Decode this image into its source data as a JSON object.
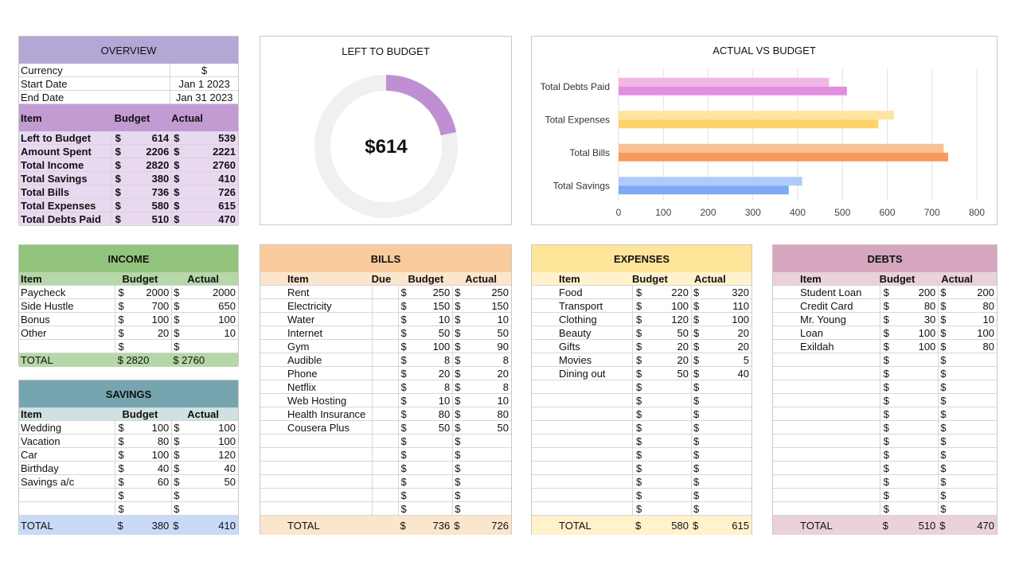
{
  "overview": {
    "title": "OVERVIEW",
    "meta": [
      {
        "label": "Currency",
        "value": "$"
      },
      {
        "label": "Start Date",
        "value": "Jan 1 2023"
      },
      {
        "label": "End Date",
        "value": "Jan 31 2023"
      }
    ],
    "headers": {
      "item": "Item",
      "budget": "Budget",
      "actual": "Actual"
    },
    "rows": [
      {
        "item": "Left to Budget",
        "cur": "$",
        "budget": "614",
        "cur2": "$",
        "actual": "539"
      },
      {
        "item": "Amount Spent",
        "cur": "$",
        "budget": "2206",
        "cur2": "$",
        "actual": "2221"
      },
      {
        "item": "Total Income",
        "cur": "$",
        "budget": "2820",
        "cur2": "$",
        "actual": "2760"
      },
      {
        "item": "Total Savings",
        "cur": "$",
        "budget": "380",
        "cur2": "$",
        "actual": "410"
      },
      {
        "item": "Total Bills",
        "cur": "$",
        "budget": "736",
        "cur2": "$",
        "actual": "726"
      },
      {
        "item": "Total Expenses",
        "cur": "$",
        "budget": "580",
        "cur2": "$",
        "actual": "615"
      },
      {
        "item": "Total Debts Paid",
        "cur": "$",
        "budget": "510",
        "cur2": "$",
        "actual": "470"
      }
    ],
    "colors": {
      "header": "#b4a7d6",
      "subheader": "#c39bd3",
      "body": "#e8d9f1"
    }
  },
  "left_to_budget": {
    "title": "LEFT TO BUDGET",
    "value_label": "$614",
    "fraction": 0.218,
    "colors": {
      "filled": "#c08fd3",
      "track": "#f0f0f0"
    }
  },
  "chart_data": {
    "type": "bar",
    "orientation": "horizontal",
    "title": "ACTUAL VS BUDGET",
    "categories": [
      "Total Debts Paid",
      "Total Expenses",
      "Total Bills",
      "Total Savings"
    ],
    "series": [
      {
        "values": [
          470,
          615,
          726,
          410
        ]
      },
      {
        "values": [
          510,
          580,
          736,
          380
        ]
      }
    ],
    "xlim": [
      0,
      800
    ],
    "xticks": [
      "0",
      "100",
      "200",
      "300",
      "400",
      "500",
      "600",
      "700",
      "800"
    ],
    "grid": true,
    "legend": "none",
    "colors": {
      "Total Debts Paid": [
        "#f2b5e6",
        "#e28fe0"
      ],
      "Total Expenses": [
        "#fde4a0",
        "#fdd36a"
      ],
      "Total Bills": [
        "#fbbf95",
        "#f79a5b"
      ],
      "Total Savings": [
        "#aecbfb",
        "#7ea9f3"
      ]
    }
  },
  "income": {
    "title": "INCOME",
    "headers": {
      "item": "Item",
      "budget": "Budget",
      "actual": "Actual"
    },
    "rows": [
      {
        "item": "Paycheck",
        "cur": "$",
        "budget": "2000",
        "cur2": "$",
        "actual": "2000"
      },
      {
        "item": "Side Hustle",
        "cur": "$",
        "budget": "700",
        "cur2": "$",
        "actual": "650"
      },
      {
        "item": "Bonus",
        "cur": "$",
        "budget": "100",
        "cur2": "$",
        "actual": "100"
      },
      {
        "item": "Other",
        "cur": "$",
        "budget": "20",
        "cur2": "$",
        "actual": "10"
      },
      {
        "item": "",
        "cur": "$",
        "budget": "",
        "cur2": "$",
        "actual": ""
      }
    ],
    "total": {
      "label": "TOTAL",
      "budget": "$  2820",
      "actual": "$  2760"
    },
    "colors": {
      "header": "#93c47d",
      "subheader": "#b6d7a8"
    }
  },
  "savings": {
    "title": "SAVINGS",
    "headers": {
      "item": "Item",
      "budget": "Budget",
      "actual": "Actual"
    },
    "rows": [
      {
        "item": "Wedding",
        "cur": "$",
        "budget": "100",
        "cur2": "$",
        "actual": "100"
      },
      {
        "item": "Vacation",
        "cur": "$",
        "budget": "80",
        "cur2": "$",
        "actual": "100"
      },
      {
        "item": "Car",
        "cur": "$",
        "budget": "100",
        "cur2": "$",
        "actual": "120"
      },
      {
        "item": "Birthday",
        "cur": "$",
        "budget": "40",
        "cur2": "$",
        "actual": "40"
      },
      {
        "item": "Savings a/c",
        "cur": "$",
        "budget": "60",
        "cur2": "$",
        "actual": "50"
      },
      {
        "item": "",
        "cur": "$",
        "budget": "",
        "cur2": "$",
        "actual": ""
      },
      {
        "item": "",
        "cur": "$",
        "budget": "",
        "cur2": "$",
        "actual": ""
      }
    ],
    "total": {
      "label": "TOTAL",
      "cur": "$",
      "budget": "380",
      "cur2": "$",
      "actual": "410"
    },
    "colors": {
      "header": "#76a5af",
      "subheader": "#d0e0e3",
      "total": "#c9daf8"
    }
  },
  "bills": {
    "title": "BILLS",
    "headers": {
      "item": "Item",
      "due": "Due",
      "budget": "Budget",
      "actual": "Actual"
    },
    "rows": [
      {
        "item": "Rent",
        "due": "",
        "cur": "$",
        "budget": "250",
        "cur2": "$",
        "actual": "250"
      },
      {
        "item": "Electricity",
        "due": "",
        "cur": "$",
        "budget": "150",
        "cur2": "$",
        "actual": "150"
      },
      {
        "item": "Water",
        "due": "",
        "cur": "$",
        "budget": "10",
        "cur2": "$",
        "actual": "10"
      },
      {
        "item": "Internet",
        "due": "",
        "cur": "$",
        "budget": "50",
        "cur2": "$",
        "actual": "50"
      },
      {
        "item": "Gym",
        "due": "",
        "cur": "$",
        "budget": "100",
        "cur2": "$",
        "actual": "90"
      },
      {
        "item": "Audible",
        "due": "",
        "cur": "$",
        "budget": "8",
        "cur2": "$",
        "actual": "8"
      },
      {
        "item": "Phone",
        "due": "",
        "cur": "$",
        "budget": "20",
        "cur2": "$",
        "actual": "20"
      },
      {
        "item": "Netflix",
        "due": "",
        "cur": "$",
        "budget": "8",
        "cur2": "$",
        "actual": "8"
      },
      {
        "item": "Web Hosting",
        "due": "",
        "cur": "$",
        "budget": "10",
        "cur2": "$",
        "actual": "10"
      },
      {
        "item": "Health Insurance",
        "due": "",
        "cur": "$",
        "budget": "80",
        "cur2": "$",
        "actual": "80"
      },
      {
        "item": "Cousera Plus",
        "due": "",
        "cur": "$",
        "budget": "50",
        "cur2": "$",
        "actual": "50"
      },
      {
        "item": "",
        "due": "",
        "cur": "$",
        "budget": "",
        "cur2": "$",
        "actual": ""
      },
      {
        "item": "",
        "due": "",
        "cur": "$",
        "budget": "",
        "cur2": "$",
        "actual": ""
      },
      {
        "item": "",
        "due": "",
        "cur": "$",
        "budget": "",
        "cur2": "$",
        "actual": ""
      },
      {
        "item": "",
        "due": "",
        "cur": "$",
        "budget": "",
        "cur2": "$",
        "actual": ""
      },
      {
        "item": "",
        "due": "",
        "cur": "$",
        "budget": "",
        "cur2": "$",
        "actual": ""
      },
      {
        "item": "",
        "due": "",
        "cur": "$",
        "budget": "",
        "cur2": "$",
        "actual": ""
      }
    ],
    "total": {
      "label": "TOTAL",
      "cur": "$",
      "budget": "736",
      "cur2": "$",
      "actual": "726"
    },
    "colors": {
      "header": "#f9cb9c",
      "subheader": "#fce5cd"
    }
  },
  "expenses": {
    "title": "EXPENSES",
    "headers": {
      "item": "Item",
      "budget": "Budget",
      "actual": "Actual"
    },
    "rows": [
      {
        "item": "Food",
        "cur": "$",
        "budget": "220",
        "cur2": "$",
        "actual": "320"
      },
      {
        "item": "Transport",
        "cur": "$",
        "budget": "100",
        "cur2": "$",
        "actual": "110"
      },
      {
        "item": "Clothing",
        "cur": "$",
        "budget": "120",
        "cur2": "$",
        "actual": "100"
      },
      {
        "item": "Beauty",
        "cur": "$",
        "budget": "50",
        "cur2": "$",
        "actual": "20"
      },
      {
        "item": "Gifts",
        "cur": "$",
        "budget": "20",
        "cur2": "$",
        "actual": "20"
      },
      {
        "item": "Movies",
        "cur": "$",
        "budget": "20",
        "cur2": "$",
        "actual": "5"
      },
      {
        "item": "Dining out",
        "cur": "$",
        "budget": "50",
        "cur2": "$",
        "actual": "40"
      },
      {
        "item": "",
        "cur": "$",
        "budget": "",
        "cur2": "$",
        "actual": ""
      },
      {
        "item": "",
        "cur": "$",
        "budget": "",
        "cur2": "$",
        "actual": ""
      },
      {
        "item": "",
        "cur": "$",
        "budget": "",
        "cur2": "$",
        "actual": ""
      },
      {
        "item": "",
        "cur": "$",
        "budget": "",
        "cur2": "$",
        "actual": ""
      },
      {
        "item": "",
        "cur": "$",
        "budget": "",
        "cur2": "$",
        "actual": ""
      },
      {
        "item": "",
        "cur": "$",
        "budget": "",
        "cur2": "$",
        "actual": ""
      },
      {
        "item": "",
        "cur": "$",
        "budget": "",
        "cur2": "$",
        "actual": ""
      },
      {
        "item": "",
        "cur": "$",
        "budget": "",
        "cur2": "$",
        "actual": ""
      },
      {
        "item": "",
        "cur": "$",
        "budget": "",
        "cur2": "$",
        "actual": ""
      },
      {
        "item": "",
        "cur": "$",
        "budget": "",
        "cur2": "$",
        "actual": ""
      }
    ],
    "total": {
      "label": "TOTAL",
      "cur": "$",
      "budget": "580",
      "cur2": "$",
      "actual": "615"
    },
    "colors": {
      "header": "#ffe599",
      "subheader": "#fff2cc"
    }
  },
  "debts": {
    "title": "DEBTS",
    "headers": {
      "item": "Item",
      "budget": "Budget",
      "actual": "Actual"
    },
    "rows": [
      {
        "item": "Student Loan",
        "cur": "$",
        "budget": "200",
        "cur2": "$",
        "actual": "200"
      },
      {
        "item": "Credit Card",
        "cur": "$",
        "budget": "80",
        "cur2": "$",
        "actual": "80"
      },
      {
        "item": "Mr. Young",
        "cur": "$",
        "budget": "30",
        "cur2": "$",
        "actual": "10"
      },
      {
        "item": "Loan",
        "cur": "$",
        "budget": "100",
        "cur2": "$",
        "actual": "100"
      },
      {
        "item": "Exildah",
        "cur": "$",
        "budget": "100",
        "cur2": "$",
        "actual": "80"
      },
      {
        "item": "",
        "cur": "$",
        "budget": "",
        "cur2": "$",
        "actual": ""
      },
      {
        "item": "",
        "cur": "$",
        "budget": "",
        "cur2": "$",
        "actual": ""
      },
      {
        "item": "",
        "cur": "$",
        "budget": "",
        "cur2": "$",
        "actual": ""
      },
      {
        "item": "",
        "cur": "$",
        "budget": "",
        "cur2": "$",
        "actual": ""
      },
      {
        "item": "",
        "cur": "$",
        "budget": "",
        "cur2": "$",
        "actual": ""
      },
      {
        "item": "",
        "cur": "$",
        "budget": "",
        "cur2": "$",
        "actual": ""
      },
      {
        "item": "",
        "cur": "$",
        "budget": "",
        "cur2": "$",
        "actual": ""
      },
      {
        "item": "",
        "cur": "$",
        "budget": "",
        "cur2": "$",
        "actual": ""
      },
      {
        "item": "",
        "cur": "$",
        "budget": "",
        "cur2": "$",
        "actual": ""
      },
      {
        "item": "",
        "cur": "$",
        "budget": "",
        "cur2": "$",
        "actual": ""
      },
      {
        "item": "",
        "cur": "$",
        "budget": "",
        "cur2": "$",
        "actual": ""
      },
      {
        "item": "",
        "cur": "$",
        "budget": "",
        "cur2": "$",
        "actual": ""
      }
    ],
    "total": {
      "label": "TOTAL",
      "cur": "$",
      "budget": "510",
      "cur2": "$",
      "actual": "470"
    },
    "colors": {
      "header": "#d5a6bd",
      "subheader": "#ead1dc"
    }
  }
}
